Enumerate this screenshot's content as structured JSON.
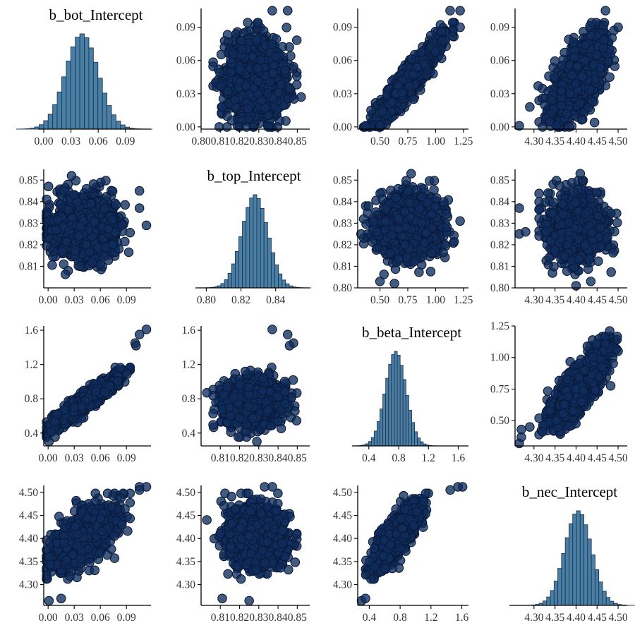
{
  "figure": {
    "variables": [
      "b_bot_Intercept",
      "b_top_Intercept",
      "b_beta_Intercept",
      "b_nec_Intercept"
    ],
    "colors": {
      "hist_fill": "#4a7fa5",
      "point_fill": "#0f2d5c",
      "point_edge": "#0a1a3a",
      "axis": "#000000",
      "tick_text": "#333333"
    }
  },
  "chart_data": [
    {
      "id": "hist-bot",
      "type": "bar",
      "row": 0,
      "col": 0,
      "title": "b_bot_Intercept",
      "xlim": [
        0.0,
        0.115
      ],
      "xticks": [
        0.0,
        0.03,
        0.06,
        0.09
      ],
      "xtick_labels": [
        "0.00",
        "0.03",
        "0.06",
        "0.09"
      ],
      "yaxis": false,
      "mean": 0.042,
      "sd": 0.018,
      "bins": 30
    },
    {
      "id": "scatter-top-bot",
      "type": "scatter",
      "row": 0,
      "col": 1,
      "xvar": "b_top_Intercept",
      "yvar": "b_bot_Intercept",
      "xlim": [
        0.8,
        0.855
      ],
      "ylim": [
        -0.002,
        0.107
      ],
      "xticks": [
        0.8,
        0.81,
        0.82,
        0.83,
        0.84,
        0.85
      ],
      "xtick_labels": [
        "0.80",
        "0.81",
        "0.82",
        "0.83",
        "0.84",
        "0.85"
      ],
      "yticks": [
        0.0,
        0.03,
        0.06,
        0.09
      ],
      "ytick_labels": [
        "0.00",
        "0.03",
        "0.06",
        "0.09"
      ],
      "xmean": 0.828,
      "xsd": 0.0075,
      "ymean": 0.042,
      "ysd": 0.018,
      "corr": 0.0,
      "n": 1200,
      "extra_points": [
        [
          0.845,
          0.105
        ],
        [
          0.837,
          0.105
        ],
        [
          0.811,
          0.018
        ],
        [
          0.81,
          0.037
        ],
        [
          0.852,
          0.027
        ]
      ]
    },
    {
      "id": "scatter-beta-bot",
      "type": "scatter",
      "row": 0,
      "col": 2,
      "xvar": "b_beta_Intercept",
      "yvar": "b_bot_Intercept",
      "xlim": [
        0.3,
        1.27
      ],
      "ylim": [
        -0.002,
        0.107
      ],
      "xticks": [
        0.5,
        0.75,
        1.0,
        1.25
      ],
      "xtick_labels": [
        "0.50",
        "0.75",
        "1.00",
        "1.25"
      ],
      "yticks": [
        0.0,
        0.03,
        0.06,
        0.09
      ],
      "ytick_labels": [
        "0.00",
        "0.03",
        "0.06",
        "0.09"
      ],
      "xmean": 0.76,
      "xsd": 0.14,
      "ymean": 0.042,
      "ysd": 0.018,
      "corr": 0.93,
      "n": 1200,
      "extra_points": [
        [
          1.22,
          0.105
        ],
        [
          1.13,
          0.105
        ],
        [
          1.22,
          0.09
        ],
        [
          0.42,
          0.015
        ],
        [
          0.37,
          0.001
        ]
      ]
    },
    {
      "id": "scatter-nec-bot",
      "type": "scatter",
      "row": 0,
      "col": 3,
      "xvar": "b_nec_Intercept",
      "yvar": "b_bot_Intercept",
      "xlim": [
        4.255,
        4.515
      ],
      "ylim": [
        -0.002,
        0.107
      ],
      "xticks": [
        4.3,
        4.35,
        4.4,
        4.45,
        4.5
      ],
      "xtick_labels": [
        "4.30",
        "4.35",
        "4.40",
        "4.45",
        "4.50"
      ],
      "yticks": [
        0.0,
        0.03,
        0.06,
        0.09
      ],
      "ytick_labels": [
        "0.00",
        "0.03",
        "0.06",
        "0.09"
      ],
      "xmean": 4.405,
      "xsd": 0.032,
      "ymean": 0.042,
      "ysd": 0.018,
      "corr": 0.62,
      "n": 1200,
      "extra_points": [
        [
          4.265,
          0.001
        ],
        [
          4.47,
          0.105
        ],
        [
          4.5,
          0.09
        ],
        [
          4.29,
          0.018
        ],
        [
          4.31,
          0.037
        ]
      ]
    },
    {
      "id": "scatter-bot-top",
      "type": "scatter",
      "row": 1,
      "col": 0,
      "xvar": "b_bot_Intercept",
      "yvar": "b_top_Intercept",
      "xlim": [
        -0.005,
        0.115
      ],
      "ylim": [
        0.8,
        0.855
      ],
      "xticks": [
        0.0,
        0.03,
        0.06,
        0.09
      ],
      "xtick_labels": [
        "0.00",
        "0.03",
        "0.06",
        "0.09"
      ],
      "yticks": [
        0.81,
        0.82,
        0.83,
        0.84,
        0.85
      ],
      "ytick_labels": [
        "0.81",
        "0.82",
        "0.83",
        "0.84",
        "0.85"
      ],
      "xmean": 0.042,
      "xsd": 0.018,
      "ymean": 0.828,
      "ysd": 0.0075,
      "corr": 0.0,
      "n": 1200,
      "extra_points": [
        [
          0.105,
          0.837
        ],
        [
          0.105,
          0.845
        ],
        [
          0.018,
          0.811
        ],
        [
          0.037,
          0.81
        ],
        [
          0.027,
          0.852
        ],
        [
          0.113,
          0.829
        ]
      ]
    },
    {
      "id": "hist-top",
      "type": "bar",
      "row": 1,
      "col": 1,
      "title": "b_top_Intercept",
      "xlim": [
        0.797,
        0.858
      ],
      "xticks": [
        0.8,
        0.82,
        0.84
      ],
      "xtick_labels": [
        "0.80",
        "0.82",
        "0.84"
      ],
      "yaxis": false,
      "mean": 0.828,
      "sd": 0.0075,
      "bins": 30
    },
    {
      "id": "scatter-beta-top",
      "type": "scatter",
      "row": 1,
      "col": 2,
      "xvar": "b_beta_Intercept",
      "yvar": "b_top_Intercept",
      "xlim": [
        0.3,
        1.27
      ],
      "ylim": [
        0.8,
        0.855
      ],
      "xticks": [
        0.5,
        0.75,
        1.0,
        1.25
      ],
      "xtick_labels": [
        "0.50",
        "0.75",
        "1.00",
        "1.25"
      ],
      "yticks": [
        0.8,
        0.81,
        0.82,
        0.83,
        0.84,
        0.85
      ],
      "ytick_labels": [
        "0.80",
        "0.81",
        "0.82",
        "0.83",
        "0.84",
        "0.85"
      ],
      "xmean": 0.76,
      "xsd": 0.14,
      "ymean": 0.828,
      "ysd": 0.0075,
      "corr": 0.0,
      "n": 1200,
      "extra_points": [
        [
          0.78,
          0.853
        ],
        [
          0.5,
          0.803
        ],
        [
          0.63,
          0.802
        ],
        [
          0.33,
          0.825
        ],
        [
          1.22,
          0.831
        ]
      ]
    },
    {
      "id": "scatter-nec-top",
      "type": "scatter",
      "row": 1,
      "col": 3,
      "xvar": "b_nec_Intercept",
      "yvar": "b_top_Intercept",
      "xlim": [
        4.255,
        4.515
      ],
      "ylim": [
        0.8,
        0.855
      ],
      "xticks": [
        4.3,
        4.35,
        4.4,
        4.45,
        4.5
      ],
      "xtick_labels": [
        "4.30",
        "4.35",
        "4.40",
        "4.45",
        "4.50"
      ],
      "yticks": [
        0.8,
        0.81,
        0.82,
        0.83,
        0.84,
        0.85
      ],
      "ytick_labels": [
        "0.80",
        "0.81",
        "0.82",
        "0.83",
        "0.84",
        "0.85"
      ],
      "xmean": 4.405,
      "xsd": 0.032,
      "ymean": 0.828,
      "ysd": 0.0075,
      "corr": -0.1,
      "n": 1200,
      "extra_points": [
        [
          4.265,
          0.837
        ],
        [
          4.265,
          0.825
        ],
        [
          4.28,
          0.826
        ],
        [
          4.41,
          0.853
        ],
        [
          4.435,
          0.803
        ],
        [
          4.4,
          0.801
        ]
      ]
    },
    {
      "id": "scatter-bot-beta",
      "type": "scatter",
      "row": 2,
      "col": 0,
      "xvar": "b_bot_Intercept",
      "yvar": "b_beta_Intercept",
      "xlim": [
        -0.005,
        0.115
      ],
      "ylim": [
        0.25,
        1.65
      ],
      "xticks": [
        0.0,
        0.03,
        0.06,
        0.09
      ],
      "xtick_labels": [
        "0.00",
        "0.03",
        "0.06",
        "0.09"
      ],
      "yticks": [
        0.4,
        0.8,
        1.2,
        1.6
      ],
      "ytick_labels": [
        "0.4",
        "0.8",
        "1.2",
        "1.6"
      ],
      "xmean": 0.042,
      "xsd": 0.018,
      "ymean": 0.76,
      "ysd": 0.14,
      "corr": 0.93,
      "n": 1200,
      "extra_points": [
        [
          0.113,
          1.61
        ],
        [
          0.105,
          1.55
        ],
        [
          0.1,
          1.45
        ],
        [
          0.101,
          1.42
        ],
        [
          0.001,
          0.3
        ]
      ]
    },
    {
      "id": "scatter-top-beta",
      "type": "scatter",
      "row": 2,
      "col": 1,
      "xvar": "b_top_Intercept",
      "yvar": "b_beta_Intercept",
      "xlim": [
        0.8,
        0.855
      ],
      "ylim": [
        0.25,
        1.65
      ],
      "xticks": [
        0.81,
        0.82,
        0.83,
        0.84,
        0.85
      ],
      "xtick_labels": [
        "0.81",
        "0.82",
        "0.83",
        "0.84",
        "0.85"
      ],
      "yticks": [
        0.4,
        0.8,
        1.2,
        1.6
      ],
      "ytick_labels": [
        "0.4",
        "0.8",
        "1.2",
        "1.6"
      ],
      "xmean": 0.828,
      "xsd": 0.0075,
      "ymean": 0.76,
      "ysd": 0.14,
      "corr": 0.0,
      "n": 1200,
      "extra_points": [
        [
          0.837,
          1.61
        ],
        [
          0.845,
          1.55
        ],
        [
          0.848,
          1.45
        ],
        [
          0.846,
          1.42
        ],
        [
          0.803,
          0.87
        ],
        [
          0.829,
          0.3
        ]
      ]
    },
    {
      "id": "hist-beta",
      "type": "bar",
      "row": 2,
      "col": 2,
      "title": "b_beta_Intercept",
      "xlim": [
        0.25,
        1.7
      ],
      "xticks": [
        0.4,
        0.8,
        1.2,
        1.6
      ],
      "xtick_labels": [
        "0.4",
        "0.8",
        "1.2",
        "1.6"
      ],
      "yaxis": false,
      "mean": 0.76,
      "sd": 0.14,
      "bins": 30
    },
    {
      "id": "scatter-nec-beta",
      "type": "scatter",
      "row": 2,
      "col": 3,
      "xvar": "b_nec_Intercept",
      "yvar": "b_beta_Intercept",
      "xlim": [
        4.255,
        4.515
      ],
      "ylim": [
        0.3,
        1.25
      ],
      "xticks": [
        4.3,
        4.35,
        4.4,
        4.45,
        4.5
      ],
      "xtick_labels": [
        "4.30",
        "4.35",
        "4.40",
        "4.45",
        "4.50"
      ],
      "yticks": [
        0.5,
        0.75,
        1.0,
        1.25
      ],
      "ytick_labels": [
        "0.50",
        "0.75",
        "1.00",
        "1.25"
      ],
      "xmean": 4.405,
      "xsd": 0.032,
      "ymean": 0.76,
      "ysd": 0.14,
      "corr": 0.78,
      "n": 1200,
      "extra_points": [
        [
          4.265,
          0.32
        ],
        [
          4.27,
          0.37
        ],
        [
          4.27,
          0.43
        ],
        [
          4.29,
          0.45
        ],
        [
          4.5,
          1.05
        ],
        [
          4.48,
          1.21
        ]
      ]
    },
    {
      "id": "scatter-bot-nec",
      "type": "scatter",
      "row": 3,
      "col": 0,
      "xvar": "b_bot_Intercept",
      "yvar": "b_nec_Intercept",
      "xlim": [
        -0.005,
        0.115
      ],
      "ylim": [
        4.255,
        4.515
      ],
      "xticks": [
        0.0,
        0.03,
        0.06,
        0.09
      ],
      "xtick_labels": [
        "0.00",
        "0.03",
        "0.06",
        "0.09"
      ],
      "yticks": [
        4.3,
        4.35,
        4.4,
        4.45,
        4.5
      ],
      "ytick_labels": [
        "4.30",
        "4.35",
        "4.40",
        "4.45",
        "4.50"
      ],
      "xmean": 0.042,
      "xsd": 0.018,
      "ymean": 4.405,
      "ysd": 0.032,
      "corr": 0.62,
      "n": 1200,
      "extra_points": [
        [
          0.001,
          4.265
        ],
        [
          0.015,
          4.27
        ],
        [
          0.105,
          4.515
        ],
        [
          0.113,
          4.517
        ],
        [
          0.105,
          4.505
        ]
      ]
    },
    {
      "id": "scatter-top-nec",
      "type": "scatter",
      "row": 3,
      "col": 1,
      "xvar": "b_top_Intercept",
      "yvar": "b_nec_Intercept",
      "xlim": [
        0.8,
        0.855
      ],
      "ylim": [
        4.255,
        4.515
      ],
      "xticks": [
        0.81,
        0.82,
        0.83,
        0.84,
        0.85
      ],
      "xtick_labels": [
        "0.81",
        "0.82",
        "0.83",
        "0.84",
        "0.85"
      ],
      "yticks": [
        4.3,
        4.35,
        4.4,
        4.45,
        4.5
      ],
      "ytick_labels": [
        "4.30",
        "4.35",
        "4.40",
        "4.45",
        "4.50"
      ],
      "xmean": 0.828,
      "xsd": 0.0075,
      "ymean": 4.405,
      "ysd": 0.032,
      "corr": -0.1,
      "n": 1200,
      "extra_points": [
        [
          0.825,
          4.265
        ],
        [
          0.811,
          4.27
        ],
        [
          0.837,
          4.515
        ],
        [
          0.833,
          4.517
        ],
        [
          0.803,
          4.44
        ]
      ]
    },
    {
      "id": "scatter-beta-nec",
      "type": "scatter",
      "row": 3,
      "col": 2,
      "xvar": "b_beta_Intercept",
      "yvar": "b_nec_Intercept",
      "xlim": [
        0.25,
        1.65
      ],
      "ylim": [
        4.255,
        4.515
      ],
      "xticks": [
        0.4,
        0.8,
        1.2,
        1.6
      ],
      "xtick_labels": [
        "0.4",
        "0.8",
        "1.2",
        "1.6"
      ],
      "yticks": [
        4.3,
        4.35,
        4.4,
        4.45,
        4.5
      ],
      "ytick_labels": [
        "4.30",
        "4.35",
        "4.40",
        "4.45",
        "4.50"
      ],
      "xmean": 0.76,
      "xsd": 0.14,
      "ymean": 4.405,
      "ysd": 0.032,
      "corr": 0.78,
      "n": 1200,
      "extra_points": [
        [
          0.3,
          4.265
        ],
        [
          0.35,
          4.27
        ],
        [
          1.61,
          4.517
        ],
        [
          1.55,
          4.517
        ],
        [
          1.45,
          4.505
        ]
      ]
    },
    {
      "id": "hist-nec",
      "type": "bar",
      "row": 3,
      "col": 3,
      "title": "b_nec_Intercept",
      "xlim": [
        4.255,
        4.515
      ],
      "xticks": [
        4.3,
        4.35,
        4.4,
        4.45,
        4.5
      ],
      "xtick_labels": [
        "4.30",
        "4.35",
        "4.40",
        "4.45",
        "4.50"
      ],
      "yaxis": false,
      "mean": 4.405,
      "sd": 0.032,
      "bins": 30
    }
  ]
}
